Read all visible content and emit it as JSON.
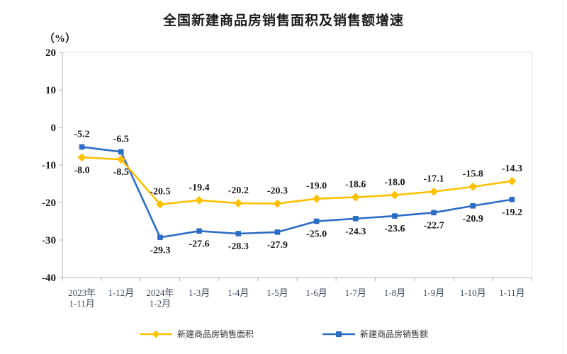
{
  "chart": {
    "title": "全国新建商品房销售面积及销售额增速",
    "y_unit": "（%）"
  },
  "chart_data": {
    "type": "line",
    "title": "全国新建商品房销售面积及销售额增速",
    "ylabel": "（%）",
    "xlabel": "",
    "categories": [
      [
        "2023年",
        "1-11月"
      ],
      [
        "1-12月"
      ],
      [
        "2024年",
        "1-2月"
      ],
      [
        "1-3月"
      ],
      [
        "1-4月"
      ],
      [
        "1-5月"
      ],
      [
        "1-6月"
      ],
      [
        "1-7月"
      ],
      [
        "1-8月"
      ],
      [
        "1-9月"
      ],
      [
        "1-10月"
      ],
      [
        "1-11月"
      ]
    ],
    "series": [
      {
        "name": "新建商品房销售面积",
        "color": "#FFC000",
        "marker": "diamond",
        "values": [
          -8.0,
          -8.5,
          -20.5,
          -19.4,
          -20.2,
          -20.3,
          -19.0,
          -18.6,
          -18.0,
          -17.1,
          -15.8,
          -14.3
        ],
        "label_positions": [
          "below",
          "below",
          "above",
          "above",
          "above",
          "above",
          "above",
          "above",
          "above",
          "above",
          "above",
          "above"
        ]
      },
      {
        "name": "新建商品房销售额",
        "color": "#2B6CC4",
        "marker": "square",
        "values": [
          -5.2,
          -6.5,
          -29.3,
          -27.6,
          -28.3,
          -27.9,
          -25.0,
          -24.3,
          -23.6,
          -22.7,
          -20.9,
          -19.2
        ],
        "label_positions": [
          "above",
          "above",
          "below",
          "below",
          "below",
          "below",
          "below",
          "below",
          "below",
          "below",
          "below",
          "below"
        ]
      }
    ],
    "ylim": [
      -40,
      20
    ],
    "yticks": [
      20,
      10,
      0,
      -10,
      -20,
      -30,
      -40
    ],
    "grid": false,
    "legend_position": "bottom",
    "axis_color": "#b3b3b3",
    "border_color": "#e0e0e0",
    "label_color": "#1a1a1a",
    "tick_label_color": "#3d4a5c"
  }
}
